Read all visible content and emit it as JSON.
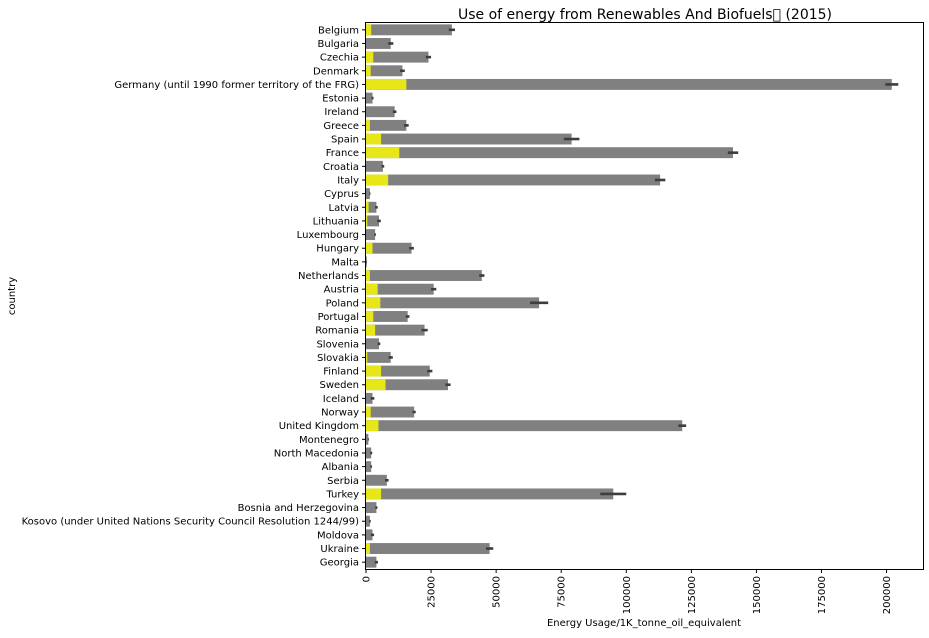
{
  "chart_data": {
    "type": "bar",
    "orientation": "horizontal",
    "title": "Use of energy from Renewables And Biofuels\u0000 (2015)",
    "xlabel": "Energy Usage/1K_tonne_oil_equivalent",
    "ylabel": "country",
    "xlim": [
      0,
      214000
    ],
    "xticks": [
      0,
      25000,
      50000,
      75000,
      100000,
      125000,
      150000,
      175000,
      200000
    ],
    "xtick_labels": [
      "0",
      "25000",
      "50000",
      "75000",
      "100000",
      "125000",
      "150000",
      "175000",
      "200000"
    ],
    "grid": false,
    "categories": [
      "Belgium",
      "Bulgaria",
      "Czechia",
      "Denmark",
      "Germany (until 1990 former territory of the FRG)",
      "Estonia",
      "Ireland",
      "Greece",
      "Spain",
      "France",
      "Croatia",
      "Italy",
      "Cyprus",
      "Latvia",
      "Lithuania",
      "Luxembourg",
      "Hungary",
      "Malta",
      "Netherlands",
      "Austria",
      "Poland",
      "Portugal",
      "Romania",
      "Slovenia",
      "Slovakia",
      "Finland",
      "Sweden",
      "Iceland",
      "Norway",
      "United Kingdom",
      "Montenegro",
      "North Macedonia",
      "Albania",
      "Serbia",
      "Turkey",
      "Bosnia and Herzegovina",
      "Kosovo (under United Nations Security Council Resolution 1244/99)",
      "Moldova",
      "Ukraine",
      "Georgia"
    ],
    "series": [
      {
        "color": "#808080",
        "values": [
          33000,
          9500,
          24000,
          14000,
          202000,
          2500,
          11000,
          15500,
          79000,
          141000,
          6500,
          113000,
          1500,
          4000,
          5000,
          3500,
          17500,
          300,
          44500,
          26000,
          66500,
          16000,
          22500,
          5000,
          9500,
          24500,
          31500,
          2500,
          18500,
          121500,
          900,
          2000,
          2000,
          8000,
          95000,
          4000,
          1500,
          2500,
          47500,
          4000
        ],
        "errors": [
          1200,
          1000,
          1000,
          900,
          2500,
          400,
          700,
          900,
          3000,
          2000,
          500,
          2000,
          200,
          500,
          700,
          300,
          900,
          100,
          1000,
          1000,
          3500,
          700,
          1200,
          500,
          800,
          1000,
          1000,
          700,
          600,
          1500,
          200,
          400,
          300,
          700,
          5000,
          400,
          300,
          600,
          1400,
          600
        ]
      },
      {
        "color": "#e6e619",
        "values": [
          2000,
          0,
          2800,
          1800,
          15500,
          0,
          0,
          1500,
          5800,
          12800,
          0,
          8500,
          0,
          1000,
          500,
          0,
          2500,
          0,
          1500,
          4500,
          5500,
          2800,
          3500,
          0,
          500,
          5800,
          7500,
          0,
          1800,
          4800,
          0,
          0,
          0,
          0,
          5800,
          0,
          0,
          0,
          1500,
          0
        ]
      }
    ]
  }
}
